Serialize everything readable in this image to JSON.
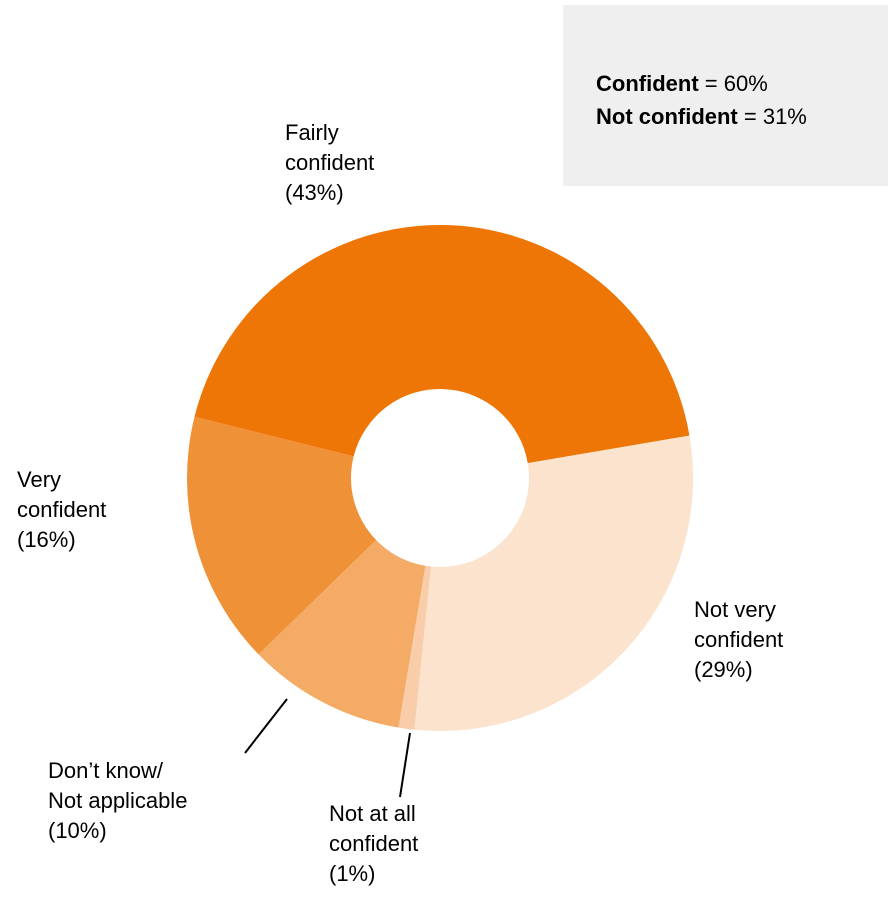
{
  "chart_data": {
    "type": "pie",
    "variant": "donut",
    "slices": [
      {
        "label_lines": [
          "Fairly",
          "confident",
          "(43%)"
        ],
        "value": 43,
        "color": "#ee7607"
      },
      {
        "label_lines": [
          "Not very",
          "confident",
          "(29%)"
        ],
        "value": 29,
        "color": "#fbe3cd"
      },
      {
        "label_lines": [
          "Not at all",
          "confident",
          "(1%)"
        ],
        "value": 1,
        "color": "#f9ccaa"
      },
      {
        "label_lines": [
          "Don’t know/",
          "Not applicable",
          "(10%)"
        ],
        "value": 10,
        "color": "#f4ab66"
      },
      {
        "label_lines": [
          "Very",
          "confident",
          "(16%)"
        ],
        "value": 16,
        "color": "#ef9137"
      }
    ]
  },
  "summary": {
    "confident_label": "Confident",
    "confident_value": " = 60%",
    "not_confident_label": "Not confident",
    "not_confident_value": " = 31%",
    "background": "#efefef"
  }
}
